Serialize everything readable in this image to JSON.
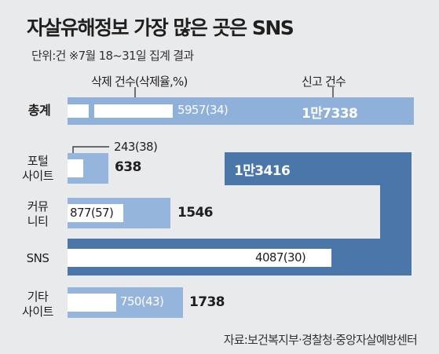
{
  "title": "자살유해정보 가장 많은 곳은 SNS",
  "subtitle": "단위:건  ※7월 18~31일 집계 결과",
  "legend": {
    "deleted": "삭제 건수(삭제율,%)",
    "reported": "신고 건수"
  },
  "source": "자료:보건복지부·경찰청·중앙자살예방센터",
  "colors": {
    "background": "#e9eaec",
    "total_bar": "#8fb1d9",
    "sns_bar": "#4a76aa",
    "category_bar": "#95b5dc",
    "deleted_bar": "#ffffff"
  },
  "rows": [
    {
      "label_lines": [
        "총계"
      ],
      "reported": 17338,
      "reported_label": "1만7338",
      "deleted": 5957,
      "deleted_label": "5957(34)"
    },
    {
      "label_lines": [
        "포털",
        "사이트"
      ],
      "reported": 638,
      "reported_label": "638",
      "deleted": 243,
      "deleted_label": "243(38)"
    },
    {
      "label_lines": [
        "커뮤",
        "니티"
      ],
      "reported": 1546,
      "reported_label": "1546",
      "deleted": 877,
      "deleted_label": "877(57)"
    },
    {
      "label_lines": [
        "SNS"
      ],
      "reported": 13416,
      "reported_label": "1만3416",
      "deleted": 4087,
      "deleted_label": "4087(30)"
    },
    {
      "label_lines": [
        "기타",
        "사이트"
      ],
      "reported": 1738,
      "reported_label": "1738",
      "deleted": 750,
      "deleted_label": "750(43)"
    }
  ],
  "chart_data": {
    "type": "bar",
    "title": "자살유해정보 가장 많은 곳은 SNS",
    "categories": [
      "총계",
      "포털 사이트",
      "커뮤니티",
      "SNS",
      "기타 사이트"
    ],
    "series": [
      {
        "name": "신고 건수",
        "values": [
          17338,
          638,
          1546,
          13416,
          1738
        ]
      },
      {
        "name": "삭제 건수(삭제율,%)",
        "values": [
          5957,
          243,
          877,
          4087,
          750
        ]
      }
    ],
    "deletion_rate_percent": [
      34,
      38,
      57,
      30,
      43
    ],
    "unit": "건"
  }
}
